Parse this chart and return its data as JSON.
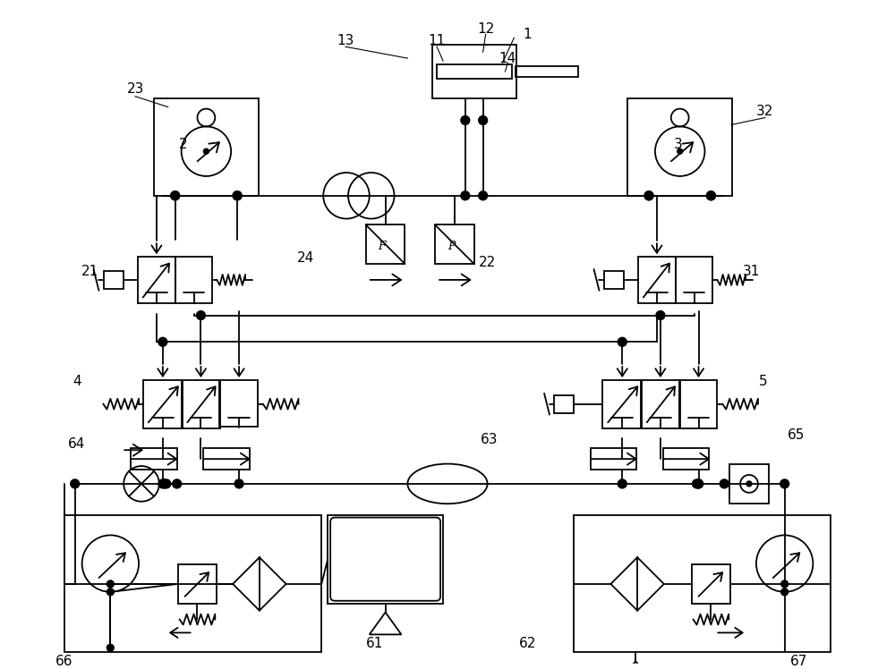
{
  "bg_color": "#ffffff",
  "lc": "#000000",
  "lw": 1.3,
  "thin": 0.8
}
